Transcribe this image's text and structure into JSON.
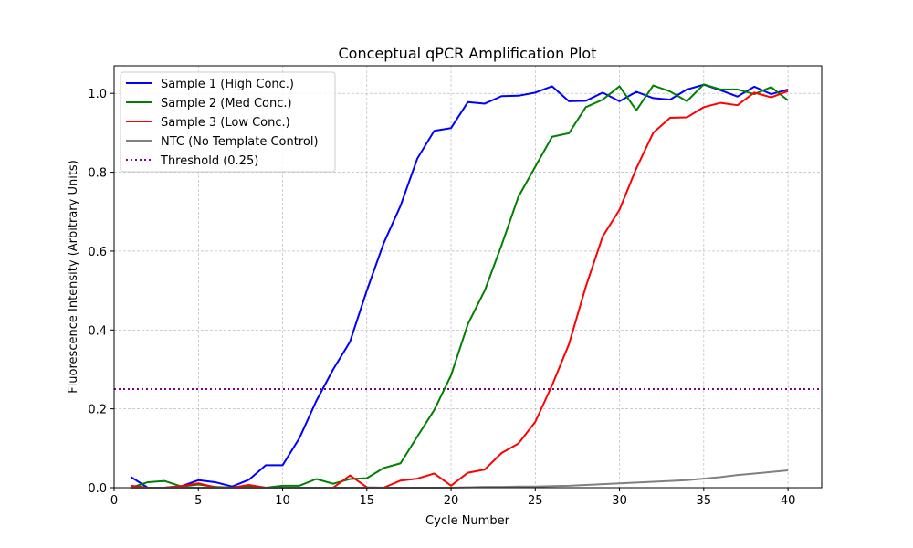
{
  "chart_data": {
    "type": "line",
    "title": "Conceptual qPCR Amplification Plot",
    "xlabel": "Cycle Number",
    "ylabel": "Fluorescence Intensity (Arbitrary Units)",
    "xlim": [
      0,
      42
    ],
    "ylim": [
      0,
      1.07
    ],
    "xticks": [
      0,
      5,
      10,
      15,
      20,
      25,
      30,
      35,
      40
    ],
    "yticks": [
      0.0,
      0.2,
      0.4,
      0.6,
      0.8,
      1.0
    ],
    "xtick_labels": [
      "0",
      "5",
      "10",
      "15",
      "20",
      "25",
      "30",
      "35",
      "40"
    ],
    "ytick_labels": [
      "0.0",
      "0.2",
      "0.4",
      "0.6",
      "0.8",
      "1.0"
    ],
    "grid": true,
    "legend_position": "top-left",
    "x": [
      1,
      2,
      3,
      4,
      5,
      6,
      7,
      8,
      9,
      10,
      11,
      12,
      13,
      14,
      15,
      16,
      17,
      18,
      19,
      20,
      21,
      22,
      23,
      24,
      25,
      26,
      27,
      28,
      29,
      30,
      31,
      32,
      33,
      34,
      35,
      36,
      37,
      38,
      39,
      40
    ],
    "series": [
      {
        "name": "Sample 1 (High Conc.)",
        "color": "#0000ff",
        "style": "solid",
        "values": [
          0.027,
          0.0,
          0.0,
          0.004,
          0.019,
          0.014,
          0.003,
          0.02,
          0.057,
          0.057,
          0.126,
          0.22,
          0.3,
          0.37,
          0.5,
          0.62,
          0.715,
          0.835,
          0.905,
          0.912,
          0.978,
          0.974,
          0.993,
          0.994,
          1.002,
          1.018,
          0.98,
          0.981,
          1.002,
          0.98,
          1.004,
          0.988,
          0.984,
          1.01,
          1.022,
          1.008,
          0.992,
          1.017,
          0.998,
          1.01
        ]
      },
      {
        "name": "Sample 2 (Med Conc.)",
        "color": "#008000",
        "style": "solid",
        "values": [
          0.0,
          0.014,
          0.017,
          0.003,
          0.008,
          0.002,
          0.0,
          0.003,
          0.0,
          0.005,
          0.005,
          0.022,
          0.01,
          0.022,
          0.024,
          0.05,
          0.062,
          0.13,
          0.197,
          0.285,
          0.415,
          0.5,
          0.615,
          0.738,
          0.814,
          0.89,
          0.899,
          0.965,
          0.984,
          1.018,
          0.957,
          1.02,
          1.005,
          0.98,
          1.023,
          1.01,
          1.01,
          0.998,
          1.016,
          0.982
        ]
      },
      {
        "name": "Sample 3 (Low Conc.)",
        "color": "#ff0000",
        "style": "solid",
        "values": [
          0.005,
          0.0,
          0.0,
          0.004,
          0.011,
          0.001,
          0.0,
          0.007,
          0.0,
          0.0,
          0.0,
          0.0,
          0.0,
          0.031,
          0.001,
          0.0,
          0.018,
          0.023,
          0.036,
          0.005,
          0.038,
          0.046,
          0.088,
          0.112,
          0.167,
          0.26,
          0.364,
          0.51,
          0.637,
          0.705,
          0.81,
          0.9,
          0.938,
          0.939,
          0.965,
          0.976,
          0.97,
          1.002,
          0.99,
          1.006
        ]
      },
      {
        "name": "NTC (No Template Control)",
        "color": "#808080",
        "style": "solid",
        "values": [
          0.0,
          0.0,
          0.0,
          0.0,
          0.0,
          0.0,
          0.0,
          0.0,
          0.0,
          0.0,
          0.0,
          0.0,
          0.0,
          0.0,
          0.0,
          0.0,
          0.0,
          0.0,
          0.0,
          0.0,
          0.001,
          0.002,
          0.002,
          0.003,
          0.003,
          0.004,
          0.005,
          0.007,
          0.009,
          0.011,
          0.013,
          0.015,
          0.017,
          0.019,
          0.023,
          0.027,
          0.032,
          0.036,
          0.04,
          0.044
        ]
      }
    ],
    "threshold": {
      "name": "Threshold (0.25)",
      "value": 0.25,
      "color": "#800080",
      "style": "dotted"
    }
  }
}
